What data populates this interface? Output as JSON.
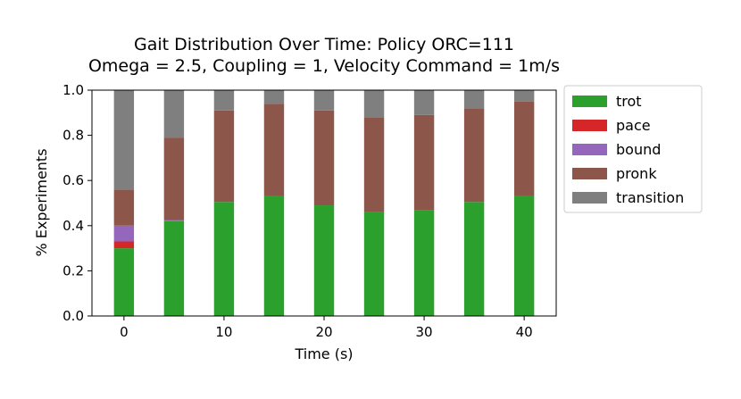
{
  "chart_data": {
    "type": "bar",
    "stacked": true,
    "title": "Gait Distribution Over Time: Policy ORC=111",
    "subtitle": "Omega = 2.5, Coupling = 1, Velocity Command = 1m/s",
    "xlabel": "Time (s)",
    "ylabel": "% Experiments",
    "x": [
      0,
      5,
      10,
      15,
      20,
      25,
      30,
      35,
      40
    ],
    "xticks": [
      "0",
      "10",
      "20",
      "30",
      "40"
    ],
    "xtick_values": [
      0,
      10,
      20,
      30,
      40
    ],
    "yticks": [
      "0.0",
      "0.2",
      "0.4",
      "0.6",
      "0.8",
      "1.0"
    ],
    "ytick_values": [
      0.0,
      0.2,
      0.4,
      0.6,
      0.8,
      1.0
    ],
    "xlim": [
      -3.2,
      43.2
    ],
    "ylim": [
      0,
      1.0
    ],
    "legend_position": "outside-right",
    "series": [
      {
        "name": "trot",
        "color": "#2ca02c",
        "values": [
          0.3,
          0.42,
          0.505,
          0.53,
          0.49,
          0.46,
          0.47,
          0.505,
          0.53
        ]
      },
      {
        "name": "pace",
        "color": "#d62728",
        "values": [
          0.03,
          0.0,
          0.0,
          0.0,
          0.0,
          0.0,
          0.0,
          0.0,
          0.0
        ]
      },
      {
        "name": "bound",
        "color": "#9467bd",
        "values": [
          0.07,
          0.005,
          0.0,
          0.0,
          0.0,
          0.0,
          0.0,
          0.0,
          0.0
        ]
      },
      {
        "name": "pronk",
        "color": "#8c564b",
        "values": [
          0.16,
          0.365,
          0.405,
          0.41,
          0.42,
          0.42,
          0.42,
          0.415,
          0.42
        ]
      },
      {
        "name": "transition",
        "color": "#7f7f7f",
        "values": [
          0.44,
          0.21,
          0.09,
          0.06,
          0.09,
          0.12,
          0.11,
          0.08,
          0.05
        ]
      }
    ]
  }
}
